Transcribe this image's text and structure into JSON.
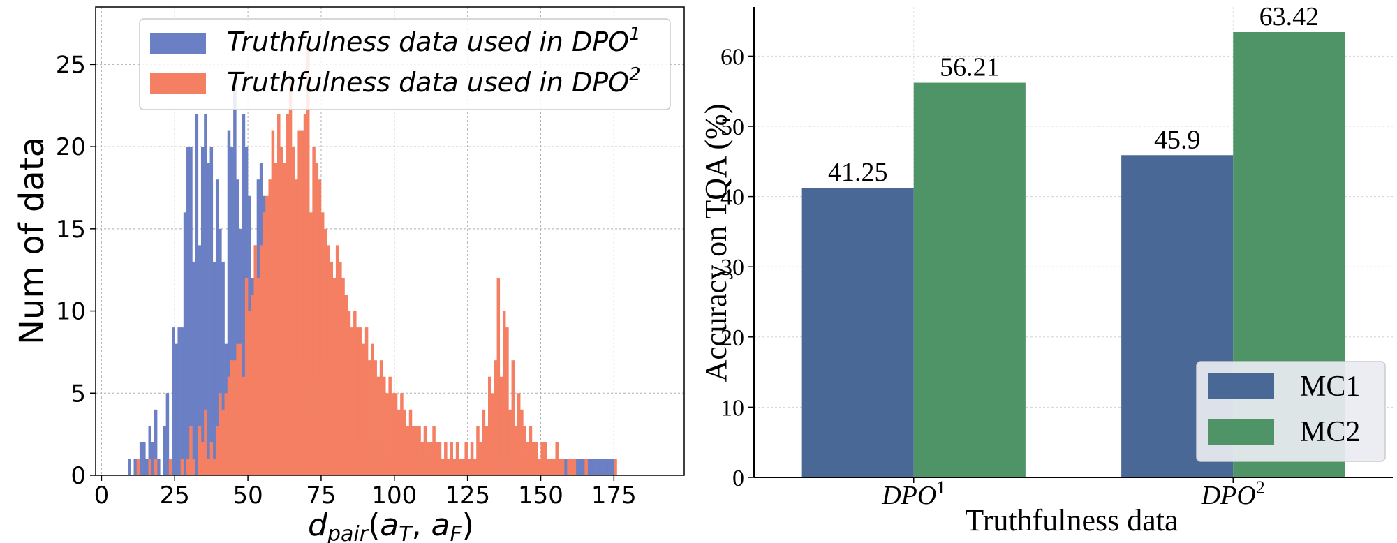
{
  "chart_data": [
    {
      "type": "histogram",
      "xlabel_main": "d",
      "xlabel_sub": "pair",
      "xlabel_args": [
        "a",
        "T",
        "a",
        "F"
      ],
      "ylabel": "Num of data",
      "xlim": [
        -2,
        199
      ],
      "ylim": [
        0,
        28.5
      ],
      "xticks": [
        0,
        25,
        50,
        75,
        100,
        125,
        150,
        175
      ],
      "yticks": [
        0,
        5,
        10,
        15,
        20,
        25
      ],
      "grid": true,
      "legend_position": "top-right",
      "series": [
        {
          "name": "Truthfulness data used in DPO",
          "superscript": "1",
          "color": "#6b7fc4",
          "bin_start": 9,
          "bin_width": 1,
          "values": [
            1,
            0,
            1,
            0,
            2,
            2,
            1,
            3,
            2,
            4,
            1,
            0,
            3,
            5,
            0,
            9,
            8,
            9,
            9,
            16,
            20,
            20,
            13,
            22,
            14,
            20,
            22,
            19,
            20,
            13,
            18,
            15,
            13,
            8,
            21,
            20,
            24,
            18,
            15,
            22,
            20,
            17,
            12,
            14,
            18,
            19,
            17,
            14,
            10,
            15,
            10,
            8,
            9,
            11,
            8,
            9,
            10,
            9,
            7,
            5,
            6,
            8,
            5,
            6,
            4,
            5,
            7,
            6,
            4,
            5,
            3,
            5,
            4,
            3,
            3,
            2,
            1,
            2,
            3,
            2,
            3,
            2,
            1,
            1,
            2,
            2,
            1,
            1,
            1,
            1,
            1,
            1,
            1,
            1,
            1,
            1,
            1,
            1,
            1,
            1,
            1,
            1,
            1,
            1,
            1,
            1,
            1,
            1,
            1,
            1,
            1,
            1,
            1,
            1,
            1,
            1,
            1,
            0,
            1,
            1,
            1,
            1,
            1,
            1,
            1,
            1,
            1,
            1,
            1,
            1,
            1,
            1,
            1,
            1,
            1,
            1,
            1,
            1,
            1,
            1,
            1,
            1,
            1,
            1,
            1,
            1,
            1,
            1,
            1,
            1,
            1,
            1,
            1,
            1,
            1,
            1,
            1,
            1,
            1,
            1,
            1,
            1,
            1,
            1,
            1,
            1,
            0,
            0,
            0,
            0,
            0,
            0,
            0,
            0,
            0,
            0,
            0,
            0,
            0,
            0,
            0,
            0,
            0,
            0,
            0,
            0,
            0,
            0,
            0,
            0,
            0,
            0,
            0,
            0,
            0,
            0,
            0,
            0,
            0,
            0
          ]
        },
        {
          "name": "Truthfulness data used in DPO",
          "superscript": "2",
          "color": "#f47f63",
          "bin_start": 9,
          "bin_width": 1,
          "values": [
            0,
            0,
            0,
            1,
            0,
            0,
            0,
            1,
            0,
            1,
            0,
            0,
            0,
            0,
            1,
            0,
            0,
            0,
            1,
            0,
            1,
            3,
            1,
            0,
            3,
            2,
            4,
            1,
            2,
            1,
            3,
            5,
            4,
            5,
            6,
            7,
            7,
            8,
            8,
            6,
            12,
            10,
            11,
            14,
            12,
            14,
            16,
            17,
            18,
            21,
            19,
            22,
            20,
            19,
            22,
            24,
            20,
            18,
            21,
            21,
            22,
            26,
            16,
            20,
            19,
            18,
            16,
            15,
            14,
            13,
            12,
            14,
            13,
            12,
            11,
            10,
            9,
            10,
            9,
            9,
            8,
            9,
            7,
            8,
            7,
            6,
            7,
            6,
            5,
            6,
            5,
            5,
            4,
            5,
            4,
            3,
            4,
            3,
            3,
            3,
            2,
            3,
            2,
            2,
            3,
            2,
            2,
            1,
            2,
            1,
            2,
            1,
            2,
            1,
            1,
            2,
            1,
            2,
            1,
            3,
            2,
            4,
            3,
            6,
            5,
            7,
            12,
            6,
            10,
            9,
            4,
            7,
            3,
            5,
            4,
            3,
            2,
            3,
            2,
            2,
            1,
            2,
            2,
            1,
            1,
            1,
            2,
            1,
            1,
            0,
            1,
            1,
            1,
            0,
            0,
            0,
            1,
            0,
            0,
            0,
            0,
            0,
            0,
            0,
            0,
            0,
            1,
            0,
            0,
            0,
            0,
            0,
            0,
            0,
            0,
            0,
            0,
            0,
            0,
            0,
            0,
            0,
            0,
            0,
            0,
            0,
            0,
            0,
            0,
            0,
            0,
            0,
            0,
            0,
            0,
            0,
            0,
            0,
            0,
            0,
            0,
            0,
            0,
            0,
            0,
            0,
            0,
            0,
            0
          ]
        }
      ]
    },
    {
      "type": "bar",
      "categories": [
        {
          "base": "DPO",
          "sup": "1"
        },
        {
          "base": "DPO",
          "sup": "2"
        }
      ],
      "series": [
        {
          "name": "MC1",
          "color": "#4a6896",
          "values": [
            41.25,
            45.9
          ],
          "labels": [
            "41.25",
            "45.9"
          ]
        },
        {
          "name": "MC2",
          "color": "#4e9467",
          "values": [
            56.21,
            63.42
          ],
          "labels": [
            "56.21",
            "63.42"
          ]
        }
      ],
      "xlabel": "Truthfulness data",
      "ylabel": "Accuracy on TQA (%)",
      "ylim": [
        0,
        67
      ],
      "yticks": [
        0,
        10,
        20,
        30,
        40,
        50,
        60
      ],
      "grid": true,
      "legend_position": "bottom-right"
    }
  ]
}
